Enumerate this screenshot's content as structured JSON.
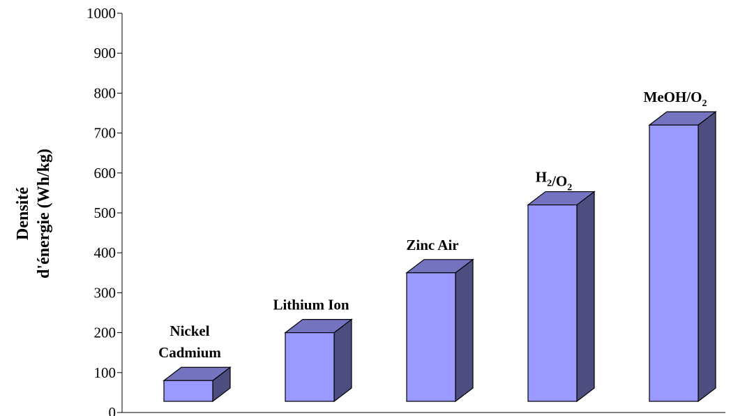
{
  "chart_data": {
    "type": "bar",
    "style": "3d",
    "categories": [
      [
        "Nickel",
        "Cadmium"
      ],
      [
        "Lithium Ion"
      ],
      [
        "Zinc Air"
      ],
      [
        "H2/O2"
      ],
      [
        "MeOH/O2"
      ]
    ],
    "values": [
      80,
      200,
      350,
      520,
      720
    ],
    "ylabel_lines": [
      "Densité",
      "d'énergie (Wh/kg)"
    ],
    "ylim": [
      0,
      1000
    ],
    "yticks": [
      0,
      100,
      200,
      300,
      400,
      500,
      600,
      700,
      800,
      900,
      1000
    ],
    "grid": false,
    "colors": {
      "front": "#9999ff",
      "side": "#4d4d80",
      "top": "#7373c0",
      "stroke": "#000000"
    }
  }
}
